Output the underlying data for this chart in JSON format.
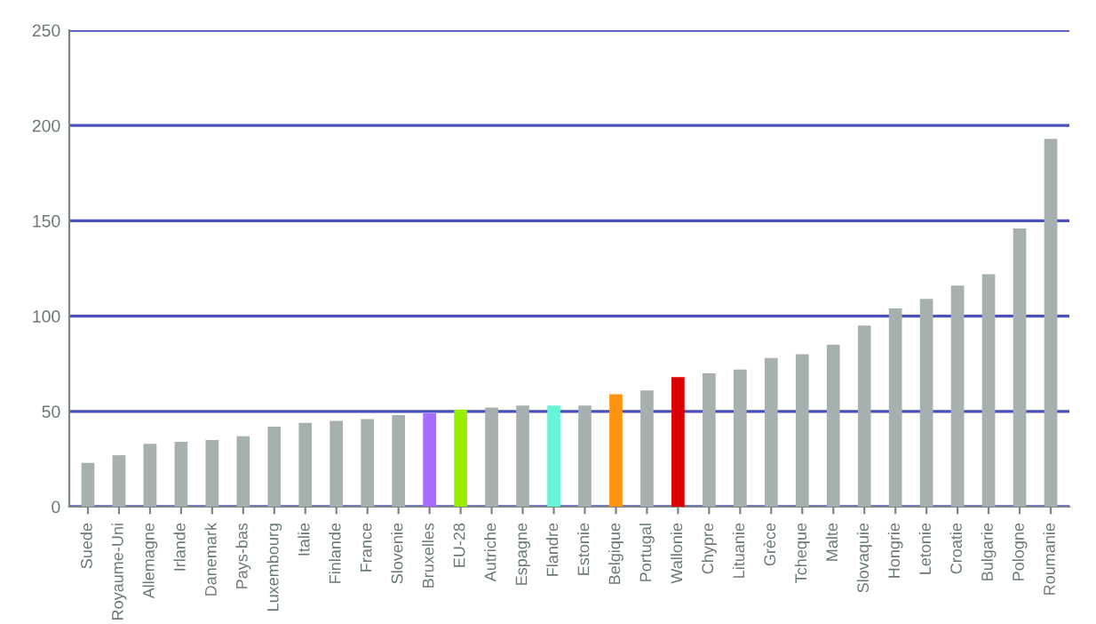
{
  "chart_data": {
    "type": "bar",
    "categories": [
      "Suede",
      "Royaume-Uni",
      "Allemagne",
      "Irlande",
      "Danemark",
      "Pays-bas",
      "Luxembourg",
      "Italie",
      "Finlande",
      "France",
      "Slovenie",
      "Bruxelles",
      "EU-28",
      "Autriche",
      "Espagne",
      "Flandre",
      "Estonie",
      "Belgique",
      "Portugal",
      "Wallonie",
      "Chypre",
      "Lituanie",
      "Grèce",
      "Tcheque",
      "Malte",
      "Slovaquie",
      "Hongrie",
      "Letonie",
      "Croatie",
      "Bulgarie",
      "Pologne",
      "Roumanie"
    ],
    "values": [
      23,
      27,
      33,
      34,
      35,
      37,
      42,
      44,
      45,
      46,
      48,
      49,
      51,
      52,
      53,
      53,
      53,
      59,
      61,
      68,
      70,
      72,
      78,
      80,
      85,
      95,
      104,
      109,
      116,
      122,
      146,
      193
    ],
    "colors": [
      "#a6b0ae",
      "#a6b0ae",
      "#a6b0ae",
      "#a6b0ae",
      "#a6b0ae",
      "#a6b0ae",
      "#a6b0ae",
      "#a6b0ae",
      "#a6b0ae",
      "#a6b0ae",
      "#a6b0ae",
      "#a66cff",
      "#99ee00",
      "#a6b0ae",
      "#a6b0ae",
      "#66f5d8",
      "#a6b0ae",
      "#ff9410",
      "#a6b0ae",
      "#dd0000",
      "#a6b0ae",
      "#a6b0ae",
      "#a6b0ae",
      "#a6b0ae",
      "#a6b0ae",
      "#a6b0ae",
      "#a6b0ae",
      "#a6b0ae",
      "#a6b0ae",
      "#a6b0ae",
      "#a6b0ae",
      "#a6b0ae"
    ],
    "ylim": [
      0,
      250
    ],
    "yticks": [
      0,
      50,
      100,
      150,
      200,
      250
    ],
    "grid": "y"
  }
}
